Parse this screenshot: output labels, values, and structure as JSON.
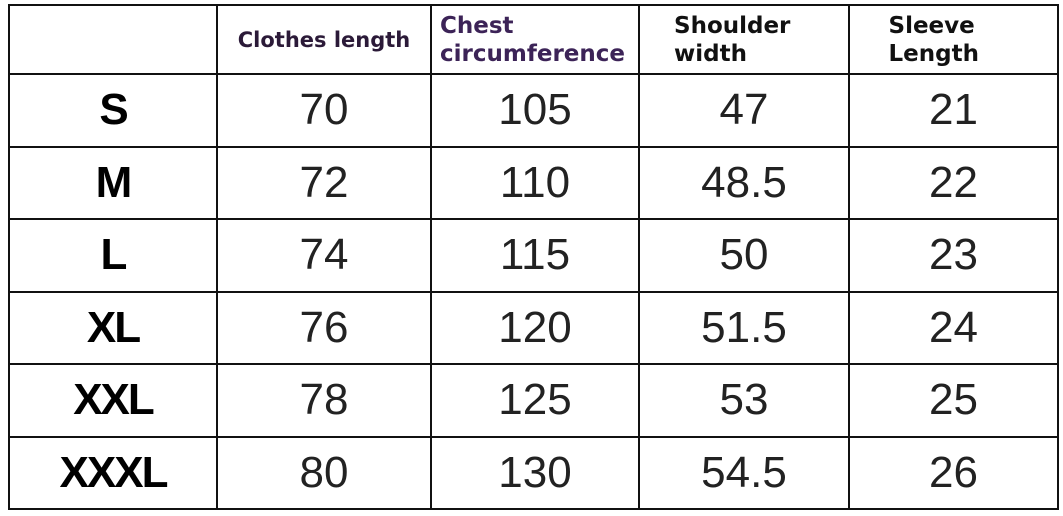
{
  "table": {
    "columns": [
      "Clothes length",
      "Chest circumference",
      "Shoulder width",
      "Sleeve Length"
    ],
    "rows": [
      {
        "size": "S",
        "values": [
          70,
          105,
          47,
          21
        ]
      },
      {
        "size": "M",
        "values": [
          72,
          110,
          48.5,
          22
        ]
      },
      {
        "size": "L",
        "values": [
          74,
          115,
          50,
          23
        ]
      },
      {
        "size": "XL",
        "values": [
          76,
          120,
          51.5,
          24
        ]
      },
      {
        "size": "XXL",
        "values": [
          78,
          125,
          53,
          25
        ]
      },
      {
        "size": "XXXL",
        "values": [
          80,
          130,
          54.5,
          26
        ]
      }
    ]
  }
}
